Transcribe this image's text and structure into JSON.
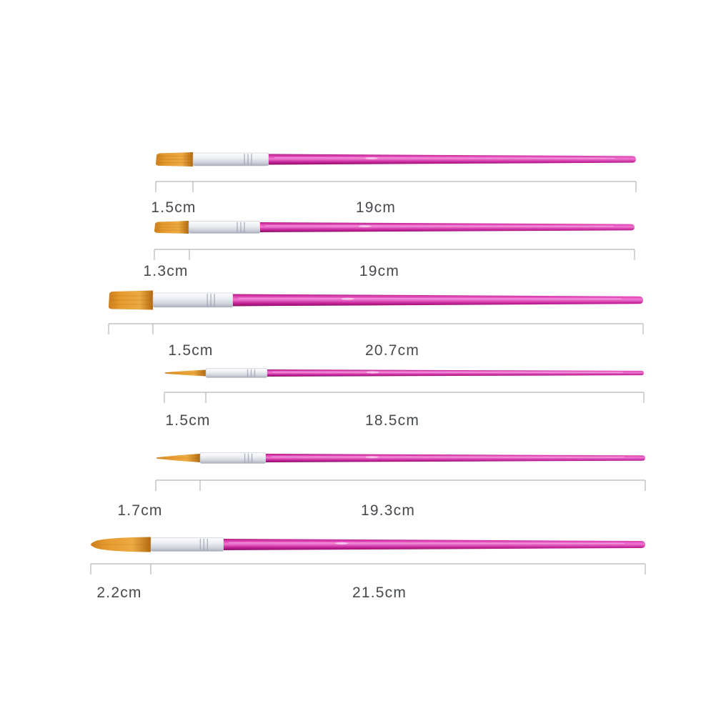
{
  "image_type": "paint-brush-set-dimension-diagram",
  "colors": {
    "background": "#ffffff",
    "handle": [
      "#ae1a80",
      "#e145b6",
      "#ee78d0",
      "#c52399",
      "#8a0d64"
    ],
    "ferrule": [
      "#fdfdfe",
      "#eceef2",
      "#cfd2db",
      "#a9adb9"
    ],
    "bristle": [
      "#cc7d1c",
      "#e59a2f",
      "#edaa42",
      "#b26a10"
    ],
    "bristle_hair": "#a8650d",
    "measure_line": "#b3b6ba",
    "label_text": "#46494d"
  },
  "brushes": [
    {
      "name": "flat-brush-small-1",
      "tip_shape": "flat",
      "bristle_label": "1.5cm",
      "length_label": "19cm"
    },
    {
      "name": "flat-brush-small-2",
      "tip_shape": "flat",
      "bristle_label": "1.3cm",
      "length_label": "19cm"
    },
    {
      "name": "flat-brush-large",
      "tip_shape": "flat",
      "bristle_label": "1.5cm",
      "length_label": "20.7cm"
    },
    {
      "name": "liner-brush",
      "tip_shape": "pointed",
      "bristle_label": "1.5cm",
      "length_label": "18.5cm"
    },
    {
      "name": "round-brush-small",
      "tip_shape": "pointed",
      "bristle_label": "1.7cm",
      "length_label": "19.3cm"
    },
    {
      "name": "round-brush-large",
      "tip_shape": "round",
      "bristle_label": "2.2cm",
      "length_label": "21.5cm"
    }
  ]
}
